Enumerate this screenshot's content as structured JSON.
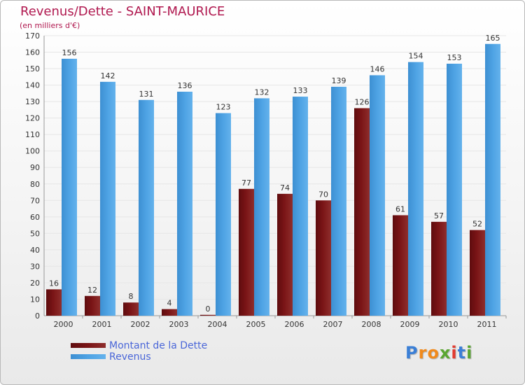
{
  "title": "Revenus/Dette - SAINT-MAURICE",
  "subtitle": "(en milliers d'€)",
  "colors": {
    "title": "#b0184f",
    "dette": "#7a1416",
    "revenus": "#4ea3e4",
    "axis_text": "#333333",
    "grid": "#e6e6e6",
    "legend_text": "#4a66d8"
  },
  "chart_data": {
    "type": "bar",
    "title": "Revenus/Dette - SAINT-MAURICE",
    "subtitle": "(en milliers d'€)",
    "categories": [
      "2000",
      "2001",
      "2002",
      "2003",
      "2004",
      "2005",
      "2006",
      "2007",
      "2008",
      "2009",
      "2010",
      "2011"
    ],
    "series": [
      {
        "name": "Montant de la Dette",
        "values": [
          16,
          12,
          8,
          4,
          0,
          77,
          74,
          70,
          126,
          61,
          57,
          52
        ]
      },
      {
        "name": "Revenus",
        "values": [
          156,
          142,
          131,
          136,
          123,
          132,
          133,
          139,
          146,
          154,
          153,
          165
        ]
      }
    ],
    "ylim": [
      0,
      170
    ],
    "yticks": [
      0,
      10,
      20,
      30,
      40,
      50,
      60,
      70,
      80,
      90,
      100,
      110,
      120,
      130,
      140,
      150,
      160,
      170
    ],
    "grid": true,
    "legend": "bottom-left"
  },
  "legend": {
    "items": [
      {
        "label": "Montant de la Dette"
      },
      {
        "label": "Revenus"
      }
    ]
  },
  "logo": {
    "text": "Proxiti",
    "letter_colors": [
      "#3b7fd6",
      "#f08a1c",
      "#f08a1c",
      "#5aa631",
      "#e23a2f",
      "#3b7fd6",
      "#5aa631"
    ]
  }
}
